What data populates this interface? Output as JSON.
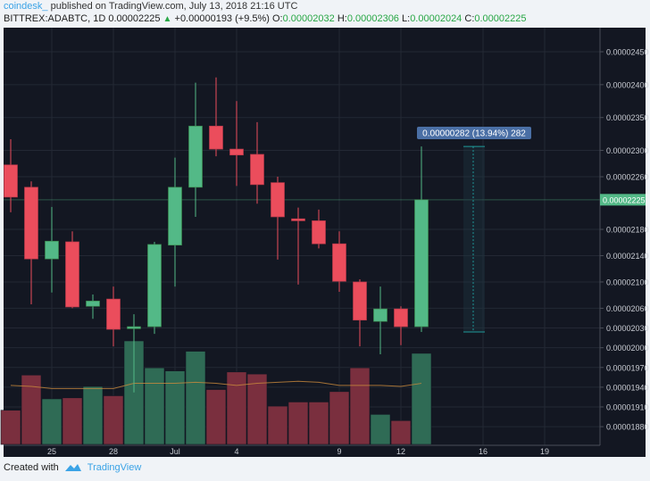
{
  "header": {
    "author": "coindesk_",
    "published": "published on TradingView.com, July 13, 2018 21:16 UTC",
    "symbol": "BITTREX:ADABTC, 1D",
    "last": "0.00002225",
    "change": "+0.00000193 (+9.5%)",
    "o_label": "O:",
    "o": "0.00002032",
    "h_label": "H:",
    "h": "0.00002306",
    "l_label": "L:",
    "l": "0.00002024",
    "c_label": "C:",
    "c": "0.00002225"
  },
  "footer": {
    "created_with": "Created with",
    "brand": "TradingView",
    "logo_icon": "tradingview-logo-icon"
  },
  "colors": {
    "up": "#53b987",
    "down": "#eb4d5c",
    "up_volume": "#2f6b55",
    "down_volume": "#7a2f3e",
    "background": "#131722",
    "grid": "#232834",
    "volume_ma": "#c98a3c",
    "measure_label": "#4a6fa5",
    "last_price_label": "#53b987"
  },
  "chart_data": {
    "type": "candlestick",
    "title": "",
    "ylabel": "",
    "xlabel": "",
    "ylim": [
      1.85e-05,
      2.48e-05
    ],
    "grid": true,
    "y_ticks": [
      "0.00002450",
      "0.00002400",
      "0.00002350",
      "0.00002300",
      "0.00002260",
      "0.00002180",
      "0.00002140",
      "0.00002100",
      "0.00002060",
      "0.00002030",
      "0.00002000",
      "0.00001970",
      "0.00001940",
      "0.00001910",
      "0.00001880"
    ],
    "x_ticks": [
      {
        "label": "25",
        "index": 2
      },
      {
        "label": "28",
        "index": 5
      },
      {
        "label": "Jul",
        "index": 8
      },
      {
        "label": "4",
        "index": 11
      },
      {
        "label": "9",
        "index": 16
      },
      {
        "label": "12",
        "index": 19
      },
      {
        "label": "16",
        "index": 23
      },
      {
        "label": "19",
        "index": 26
      }
    ],
    "dates": [
      "Jun 23",
      "Jun 24",
      "Jun 25",
      "Jun 26",
      "Jun 27",
      "Jun 28",
      "Jun 29",
      "Jun 30",
      "Jul 1",
      "Jul 2",
      "Jul 3",
      "Jul 4",
      "Jul 5",
      "Jul 6",
      "Jul 7",
      "Jul 8",
      "Jul 9",
      "Jul 10",
      "Jul 11",
      "Jul 12",
      "Jul 13"
    ],
    "open": [
      2.278e-05,
      2.244e-05,
      2.135e-05,
      2.161e-05,
      2.063e-05,
      2.074e-05,
      2.029e-05,
      2.032e-05,
      2.156e-05,
      2.244e-05,
      2.337e-05,
      2.302e-05,
      2.294e-05,
      2.251e-05,
      2.196e-05,
      2.193e-05,
      2.158e-05,
      2.1e-05,
      2.04e-05,
      2.059e-05,
      2.032e-05
    ],
    "high": [
      2.317e-05,
      2.253e-05,
      2.214e-05,
      2.177e-05,
      2.081e-05,
      2.093e-05,
      2.051e-05,
      2.161e-05,
      2.289e-05,
      2.403e-05,
      2.411e-05,
      2.375e-05,
      2.343e-05,
      2.26e-05,
      2.213e-05,
      2.21e-05,
      2.177e-05,
      2.104e-05,
      2.093e-05,
      2.063e-05,
      2.306e-05
    ],
    "low": [
      2.206e-05,
      2.066e-05,
      2.084e-05,
      2.06e-05,
      2.044e-05,
      2.002e-05,
      1.932e-05,
      2.021e-05,
      2.093e-05,
      2.199e-05,
      2.291e-05,
      2.246e-05,
      2.219e-05,
      2.134e-05,
      2.096e-05,
      2.151e-05,
      2.085e-05,
      2.002e-05,
      1.99e-05,
      2.004e-05,
      2.024e-05
    ],
    "close": [
      2.229e-05,
      2.135e-05,
      2.162e-05,
      2.062e-05,
      2.071e-05,
      2.028e-05,
      2.032e-05,
      2.157e-05,
      2.244e-05,
      2.337e-05,
      2.302e-05,
      2.293e-05,
      2.248e-05,
      2.199e-05,
      2.193e-05,
      2.158e-05,
      2.101e-05,
      2.042e-05,
      2.059e-05,
      2.032e-05,
      2.225e-05
    ],
    "volume_relative": [
      33,
      67,
      44,
      45,
      56,
      47,
      100,
      74,
      71,
      90,
      53,
      70,
      68,
      37,
      41,
      41,
      51,
      74,
      29,
      23,
      88
    ],
    "volume_ma_relative": [
      57,
      56,
      54,
      54,
      54,
      54,
      59,
      59,
      59,
      60,
      59,
      57,
      59,
      60,
      61,
      60,
      57,
      57,
      57,
      56,
      59
    ],
    "last_price_label": "0.00002225",
    "measure": {
      "label": "0.00000282 (13.94%) 282",
      "from": 2.024e-05,
      "to": 2.306e-05
    }
  }
}
